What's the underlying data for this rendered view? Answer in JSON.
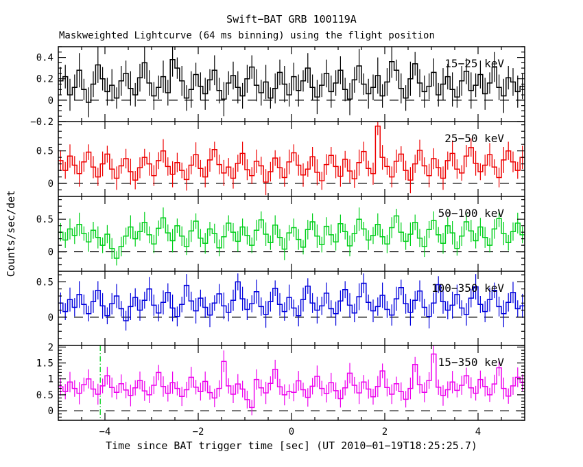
{
  "chart_data": {
    "type": "line",
    "subtype": "step-histogram-lightcurve-with-error-bars",
    "title": "Swift−BAT GRB 100119A",
    "subtitle": "Maskweighted Lightcurve (64 ms binning) using the flight position",
    "xlabel": "Time since BAT trigger time [sec] (UT 2010−01−19T18:25:25.7)",
    "ylabel": "Counts/sec/det",
    "grid": false,
    "legend_position": "band-label-top-right-inside-each-panel",
    "x": {
      "min": -5,
      "max": 5,
      "bin_width": 0.1,
      "major_ticks": [
        {
          "v": -4,
          "label": "−4"
        },
        {
          "v": -2,
          "label": "−2"
        },
        {
          "v": 0,
          "label": "0"
        },
        {
          "v": 2,
          "label": "2"
        },
        {
          "v": 4,
          "label": "4"
        }
      ],
      "minor_step": 0.5
    },
    "zero_line": {
      "style": "dashed",
      "color": "#000000"
    },
    "panels": [
      {
        "name": "15−25 keV",
        "color": "#000000",
        "ylim": [
          -0.2,
          0.5
        ],
        "major_step": 0.2,
        "minor_step": 0.05,
        "tick_labels": [
          {
            "v": 0.4,
            "label": "0.4"
          },
          {
            "v": 0.2,
            "label": "0.2"
          },
          {
            "v": 0.0,
            "label": "0"
          },
          {
            "v": -0.2,
            "label": "−0.2"
          }
        ],
        "values": [
          0.18,
          0.22,
          0.05,
          0.12,
          0.28,
          0.1,
          -0.02,
          0.15,
          0.33,
          0.2,
          0.08,
          0.14,
          0.02,
          0.18,
          0.25,
          0.11,
          0.05,
          0.21,
          0.35,
          0.16,
          0.04,
          0.12,
          0.22,
          0.07,
          0.38,
          0.3,
          0.18,
          0.02,
          0.1,
          0.24,
          0.13,
          0.06,
          0.19,
          0.28,
          0.09,
          0.01,
          0.16,
          0.23,
          0.12,
          0.04,
          0.2,
          0.31,
          0.14,
          0.07,
          0.17,
          0.02,
          0.11,
          0.26,
          0.15,
          0.05,
          0.22,
          0.09,
          0.18,
          0.3,
          0.12,
          0.03,
          0.14,
          0.25,
          0.08,
          0.16,
          0.28,
          0.1,
          0.01,
          0.19,
          0.32,
          0.15,
          0.06,
          0.12,
          0.23,
          0.04,
          0.17,
          0.36,
          0.28,
          0.11,
          0.02,
          0.2,
          0.34,
          0.16,
          0.08,
          0.13,
          0.26,
          0.05,
          0.15,
          0.22,
          0.1,
          0.03,
          0.18,
          0.27,
          0.09,
          0.14,
          0.24,
          0.06,
          0.16,
          0.31,
          0.12,
          0.04,
          0.21,
          0.17,
          0.08,
          0.13
        ],
        "err_pattern": [
          0.13,
          0.11,
          0.15,
          0.12,
          0.16,
          0.1,
          0.14,
          0.12,
          0.17,
          0.11,
          0.13,
          0.15,
          0.1,
          0.14,
          0.12,
          0.16,
          0.11,
          0.13,
          0.15,
          0.12
        ]
      },
      {
        "name": "25−50 keV",
        "color": "#ee0000",
        "ylim": [
          -0.2,
          0.95
        ],
        "major_step": 0.5,
        "minor_step": 0.1,
        "tick_labels": [
          {
            "v": 0.5,
            "label": "0.5"
          },
          {
            "v": 0.0,
            "label": "0"
          }
        ],
        "values": [
          0.35,
          0.2,
          0.42,
          0.28,
          0.15,
          0.33,
          0.48,
          0.25,
          0.1,
          0.3,
          0.45,
          0.22,
          0.08,
          0.27,
          0.38,
          0.18,
          0.05,
          0.24,
          0.4,
          0.3,
          0.12,
          0.35,
          0.5,
          0.26,
          0.14,
          0.32,
          0.2,
          0.06,
          0.28,
          0.44,
          0.23,
          0.1,
          0.36,
          0.52,
          0.29,
          0.16,
          0.25,
          0.08,
          0.31,
          0.46,
          0.21,
          0.12,
          0.34,
          0.27,
          0.02,
          0.18,
          0.39,
          0.24,
          0.09,
          0.33,
          0.47,
          0.28,
          0.13,
          0.22,
          0.41,
          0.17,
          0.04,
          0.29,
          0.43,
          0.26,
          0.11,
          0.37,
          0.19,
          0.07,
          0.32,
          0.49,
          0.23,
          0.15,
          0.88,
          0.4,
          0.26,
          0.1,
          0.34,
          0.45,
          0.2,
          0.05,
          0.3,
          0.51,
          0.27,
          0.12,
          0.38,
          0.24,
          0.08,
          0.35,
          0.46,
          0.22,
          0.16,
          0.42,
          0.55,
          0.31,
          0.18,
          0.28,
          0.44,
          0.25,
          0.09,
          0.36,
          0.5,
          0.33,
          0.2,
          0.4
        ],
        "err_pattern": [
          0.16,
          0.13,
          0.18,
          0.14,
          0.2,
          0.15,
          0.12,
          0.17,
          0.14,
          0.19,
          0.13,
          0.16,
          0.18,
          0.12,
          0.15,
          0.2,
          0.14,
          0.16,
          0.13,
          0.18
        ]
      },
      {
        "name": "50−100 keV",
        "color": "#00d01a",
        "ylim": [
          -0.3,
          0.85
        ],
        "major_step": 0.5,
        "minor_step": 0.1,
        "tick_labels": [
          {
            "v": 0.5,
            "label": "0.5"
          },
          {
            "v": 0.0,
            "label": "0"
          }
        ],
        "values": [
          0.3,
          0.18,
          0.35,
          0.25,
          0.42,
          0.28,
          0.15,
          0.33,
          0.22,
          0.1,
          0.27,
          0.05,
          -0.1,
          0.08,
          0.24,
          0.38,
          0.2,
          0.31,
          0.45,
          0.26,
          0.12,
          0.36,
          0.52,
          0.29,
          0.17,
          0.4,
          0.24,
          0.08,
          0.32,
          0.47,
          0.21,
          0.13,
          0.35,
          0.28,
          0.06,
          0.23,
          0.44,
          0.3,
          0.16,
          0.38,
          0.25,
          0.1,
          0.33,
          0.49,
          0.27,
          0.14,
          0.41,
          0.22,
          0.04,
          0.29,
          0.37,
          0.19,
          0.07,
          0.34,
          0.46,
          0.24,
          0.11,
          0.39,
          0.26,
          0.15,
          0.43,
          0.31,
          0.09,
          0.28,
          0.5,
          0.35,
          0.18,
          0.25,
          0.42,
          0.23,
          0.12,
          0.37,
          0.55,
          0.3,
          0.16,
          0.27,
          0.45,
          0.21,
          0.08,
          0.34,
          0.48,
          0.26,
          0.13,
          0.4,
          0.29,
          0.05,
          0.24,
          0.46,
          0.32,
          0.17,
          0.38,
          0.22,
          0.1,
          0.35,
          0.51,
          0.28,
          0.14,
          0.31,
          0.44,
          0.26
        ],
        "err_pattern": [
          0.14,
          0.12,
          0.16,
          0.13,
          0.18,
          0.11,
          0.15,
          0.13,
          0.17,
          0.12,
          0.14,
          0.16,
          0.11,
          0.15,
          0.13,
          0.18,
          0.12,
          0.14,
          0.16,
          0.13
        ]
      },
      {
        "name": "100−350 keV",
        "color": "#0000dd",
        "ylim": [
          -0.4,
          0.65
        ],
        "major_step": 0.5,
        "minor_step": 0.1,
        "tick_labels": [
          {
            "v": 0.5,
            "label": "0.5"
          },
          {
            "v": 0.0,
            "label": "0"
          }
        ],
        "values": [
          0.2,
          0.08,
          0.25,
          0.14,
          0.32,
          0.18,
          0.05,
          0.22,
          0.38,
          0.16,
          0.02,
          0.19,
          0.3,
          0.12,
          -0.05,
          0.15,
          0.28,
          0.1,
          0.24,
          0.4,
          0.17,
          0.06,
          0.21,
          0.35,
          0.13,
          0.01,
          0.18,
          0.45,
          0.23,
          0.09,
          0.27,
          0.14,
          0.03,
          0.2,
          0.33,
          0.16,
          0.07,
          0.24,
          0.5,
          0.26,
          0.11,
          0.19,
          0.36,
          0.15,
          0.04,
          0.22,
          0.41,
          0.18,
          0.08,
          0.28,
          0.13,
          0.02,
          0.25,
          0.44,
          0.2,
          0.1,
          0.16,
          0.34,
          0.12,
          0.05,
          0.23,
          0.39,
          0.17,
          0.06,
          0.29,
          0.48,
          0.21,
          0.09,
          0.15,
          0.31,
          0.11,
          0.03,
          0.26,
          0.42,
          0.19,
          0.07,
          0.24,
          0.37,
          0.14,
          0.01,
          0.2,
          0.46,
          0.22,
          0.1,
          0.17,
          0.32,
          0.13,
          0.04,
          0.27,
          0.43,
          0.18,
          0.08,
          0.25,
          0.38,
          0.15,
          0.05,
          0.21,
          0.35,
          0.12,
          0.16
        ],
        "err_pattern": [
          0.15,
          0.12,
          0.17,
          0.13,
          0.19,
          0.14,
          0.11,
          0.16,
          0.13,
          0.18,
          0.12,
          0.15,
          0.17,
          0.11,
          0.14,
          0.19,
          0.13,
          0.15,
          0.12,
          0.17
        ]
      },
      {
        "name": "15−350 keV",
        "color": "#ee00ee",
        "ylim": [
          -0.3,
          2.05
        ],
        "major_step": 0.5,
        "minor_step": 0.1,
        "tick_labels": [
          {
            "v": 2.0,
            "label": "2"
          },
          {
            "v": 1.5,
            "label": "1.5"
          },
          {
            "v": 1.0,
            "label": "1"
          },
          {
            "v": 0.5,
            "label": "0.5"
          },
          {
            "v": 0.0,
            "label": "0"
          }
        ],
        "marker_line": {
          "t": -4.1,
          "color": "#00d01a",
          "style": "dash-dot"
        },
        "values": [
          0.75,
          0.6,
          0.9,
          0.7,
          0.55,
          0.82,
          1.0,
          0.68,
          0.52,
          0.78,
          1.1,
          0.73,
          0.58,
          0.85,
          0.65,
          0.48,
          0.72,
          0.95,
          0.62,
          0.5,
          0.8,
          1.2,
          0.76,
          0.55,
          0.88,
          0.7,
          0.45,
          0.66,
          1.05,
          0.74,
          0.6,
          0.92,
          0.57,
          0.4,
          0.7,
          1.55,
          0.78,
          0.52,
          0.84,
          0.68,
          0.35,
          0.1,
          0.98,
          0.72,
          0.56,
          0.86,
          1.3,
          0.75,
          0.5,
          0.6,
          0.58,
          0.94,
          0.66,
          0.42,
          0.77,
          1.08,
          0.7,
          0.54,
          0.88,
          0.63,
          0.38,
          0.72,
          1.18,
          0.8,
          0.56,
          0.9,
          0.68,
          0.44,
          0.76,
          1.25,
          0.73,
          0.52,
          0.85,
          0.6,
          0.36,
          0.7,
          1.45,
          0.82,
          0.58,
          0.95,
          1.78,
          0.74,
          0.48,
          0.66,
          0.9,
          0.64,
          0.8,
          1.1,
          0.72,
          0.55,
          0.98,
          0.76,
          0.5,
          0.84,
          1.35,
          0.7,
          0.46,
          0.78,
          1.05,
          0.88
        ],
        "err_pattern": [
          0.28,
          0.24,
          0.32,
          0.26,
          0.35,
          0.22,
          0.3,
          0.25,
          0.33,
          0.23,
          0.28,
          0.31,
          0.22,
          0.29,
          0.26,
          0.34,
          0.24,
          0.28,
          0.31,
          0.26
        ]
      }
    ]
  }
}
